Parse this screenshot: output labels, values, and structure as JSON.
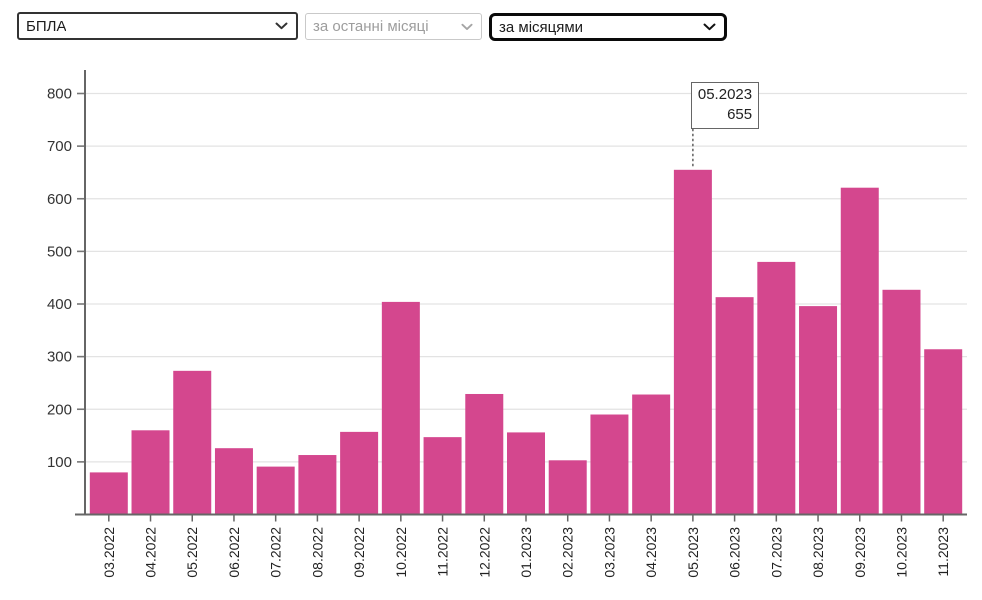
{
  "controls": {
    "category_select": {
      "value": "БПЛА"
    },
    "period_select": {
      "value": "за останні місяці",
      "disabled": true
    },
    "grouping_select": {
      "value": "за місяцями"
    }
  },
  "tooltip": {
    "label": "05.2023",
    "value": "655"
  },
  "colors": {
    "bar": "#d4478e",
    "grid": "#e3e3e3",
    "axis": "#666666",
    "tick": "#777777",
    "y_label": "#333333",
    "x_label": "#222222",
    "connector": "#555555"
  },
  "chart_data": {
    "type": "bar",
    "categories": [
      "03.2022",
      "04.2022",
      "05.2022",
      "06.2022",
      "07.2022",
      "08.2022",
      "09.2022",
      "10.2022",
      "11.2022",
      "12.2022",
      "01.2023",
      "02.2023",
      "03.2023",
      "04.2023",
      "05.2023",
      "06.2023",
      "07.2023",
      "08.2023",
      "09.2023",
      "10.2023",
      "11.2023"
    ],
    "values": [
      80,
      160,
      273,
      126,
      91,
      113,
      157,
      404,
      147,
      229,
      156,
      103,
      190,
      228,
      655,
      413,
      480,
      396,
      621,
      427,
      314
    ],
    "ylim": [
      0,
      800
    ],
    "yticks": [
      100,
      200,
      300,
      400,
      500,
      600,
      700,
      800
    ],
    "grid": true,
    "legend_position": "none",
    "highlighted": {
      "category": "05.2023",
      "value": 655
    }
  }
}
